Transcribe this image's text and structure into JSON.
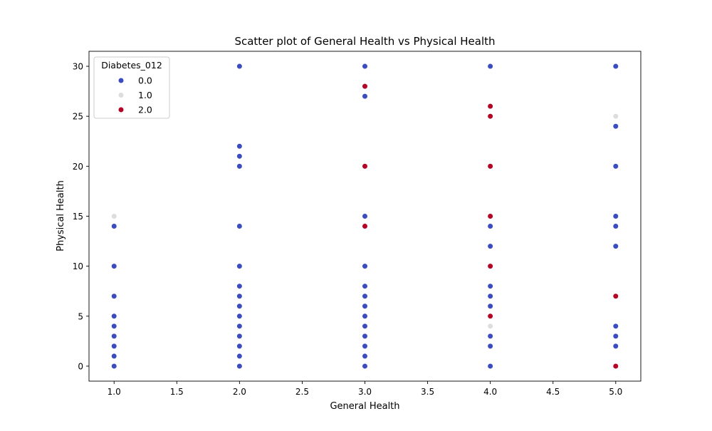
{
  "chart_data": {
    "type": "scatter",
    "title": "Scatter plot of General Health vs Physical Health",
    "xlabel": "General Health",
    "ylabel": "Physical Health",
    "xlim": [
      0.8,
      5.2
    ],
    "ylim": [
      -1.5,
      31.5
    ],
    "xticks": [
      1.0,
      1.5,
      2.0,
      2.5,
      3.0,
      3.5,
      4.0,
      4.5,
      5.0
    ],
    "xtick_labels": [
      "1.0",
      "1.5",
      "2.0",
      "2.5",
      "3.0",
      "3.5",
      "4.0",
      "4.5",
      "5.0"
    ],
    "yticks": [
      0,
      5,
      10,
      15,
      20,
      25,
      30
    ],
    "ytick_labels": [
      "0",
      "5",
      "10",
      "15",
      "20",
      "25",
      "30"
    ],
    "grid": false,
    "legend": {
      "title": "Diabetes_012",
      "placement": "top-left"
    },
    "series": [
      {
        "name": "0.0",
        "color": "#3b4cc0",
        "points": [
          [
            1,
            0
          ],
          [
            1,
            1
          ],
          [
            1,
            2
          ],
          [
            1,
            3
          ],
          [
            1,
            4
          ],
          [
            1,
            5
          ],
          [
            1,
            7
          ],
          [
            1,
            10
          ],
          [
            1,
            14
          ],
          [
            2,
            0
          ],
          [
            2,
            1
          ],
          [
            2,
            2
          ],
          [
            2,
            3
          ],
          [
            2,
            4
          ],
          [
            2,
            5
          ],
          [
            2,
            6
          ],
          [
            2,
            7
          ],
          [
            2,
            8
          ],
          [
            2,
            10
          ],
          [
            2,
            14
          ],
          [
            2,
            20
          ],
          [
            2,
            21
          ],
          [
            2,
            22
          ],
          [
            2,
            30
          ],
          [
            3,
            0
          ],
          [
            3,
            1
          ],
          [
            3,
            2
          ],
          [
            3,
            3
          ],
          [
            3,
            4
          ],
          [
            3,
            5
          ],
          [
            3,
            6
          ],
          [
            3,
            7
          ],
          [
            3,
            8
          ],
          [
            3,
            10
          ],
          [
            3,
            15
          ],
          [
            3,
            27
          ],
          [
            3,
            30
          ],
          [
            4,
            0
          ],
          [
            4,
            2
          ],
          [
            4,
            3
          ],
          [
            4,
            6
          ],
          [
            4,
            7
          ],
          [
            4,
            8
          ],
          [
            4,
            12
          ],
          [
            4,
            14
          ],
          [
            4,
            30
          ],
          [
            5,
            2
          ],
          [
            5,
            3
          ],
          [
            5,
            4
          ],
          [
            5,
            12
          ],
          [
            5,
            14
          ],
          [
            5,
            15
          ],
          [
            5,
            20
          ],
          [
            5,
            24
          ],
          [
            5,
            30
          ]
        ]
      },
      {
        "name": "1.0",
        "color": "#dddddd",
        "points": [
          [
            1,
            15
          ],
          [
            4,
            4
          ],
          [
            5,
            25
          ]
        ]
      },
      {
        "name": "2.0",
        "color": "#b40426",
        "points": [
          [
            3,
            14
          ],
          [
            3,
            20
          ],
          [
            3,
            28
          ],
          [
            4,
            5
          ],
          [
            4,
            10
          ],
          [
            4,
            15
          ],
          [
            4,
            20
          ],
          [
            4,
            25
          ],
          [
            4,
            26
          ],
          [
            5,
            0
          ],
          [
            5,
            7
          ]
        ]
      }
    ]
  }
}
